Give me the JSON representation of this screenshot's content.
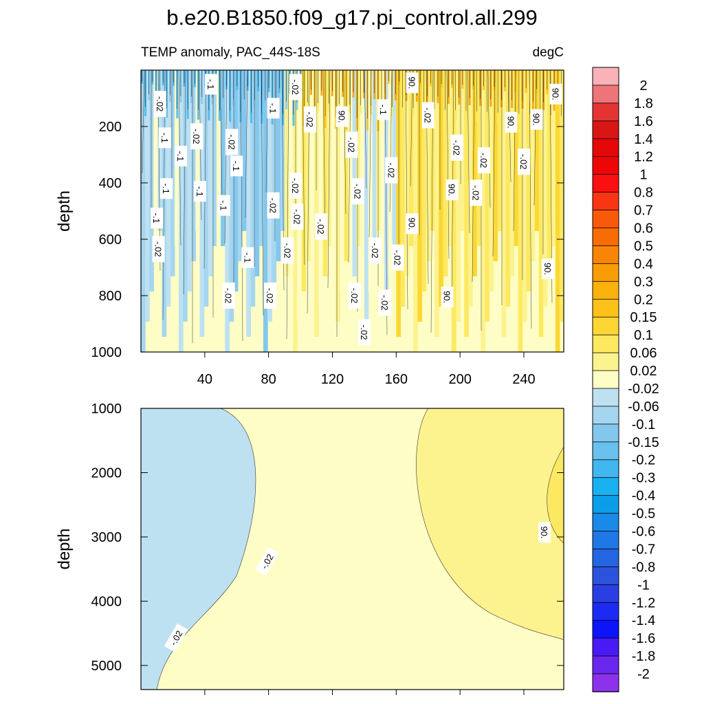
{
  "chart_data": {
    "type": "contour",
    "title": "b.e20.B1850.f09_g17.pi_control.all.299",
    "subtitle_left": "TEMP anomaly, PAC_44S-18S",
    "subtitle_right": "degC",
    "panels": [
      {
        "name": "upper",
        "ylabel": "depth",
        "ylim": [
          0,
          1000
        ],
        "xlim": [
          0,
          265
        ],
        "yticks": [
          200,
          400,
          600,
          800,
          1000
        ],
        "xticks": [
          40,
          80,
          120,
          160,
          200,
          240
        ],
        "regions": [
          {
            "x": [
              0,
              50
            ],
            "anomaly": -0.06
          },
          {
            "x": [
              50,
              90
            ],
            "anomaly": -0.1
          },
          {
            "x": [
              90,
              130
            ],
            "anomaly": 0.02
          },
          {
            "x": [
              130,
              160
            ],
            "anomaly": -0.02
          },
          {
            "x": [
              160,
              200
            ],
            "anomaly": 0.06
          },
          {
            "x": [
              200,
              265
            ],
            "anomaly": 0.06
          }
        ],
        "contour_labels": [
          {
            "x": 12,
            "y": 120,
            "text": "-.02"
          },
          {
            "x": 44,
            "y": 50,
            "text": "-.1"
          },
          {
            "x": 97,
            "y": 60,
            "text": "-.02"
          },
          {
            "x": 170,
            "y": 45,
            "text": "90."
          },
          {
            "x": 260,
            "y": 85,
            "text": "90."
          },
          {
            "x": 15,
            "y": 240,
            "text": "-.1"
          },
          {
            "x": 35,
            "y": 235,
            "text": "-.02"
          },
          {
            "x": 57,
            "y": 255,
            "text": "-.02"
          },
          {
            "x": 83,
            "y": 135,
            "text": "-.1"
          },
          {
            "x": 106,
            "y": 175,
            "text": "-.02"
          },
          {
            "x": 126,
            "y": 165,
            "text": "90."
          },
          {
            "x": 152,
            "y": 140,
            "text": "-.1"
          },
          {
            "x": 180,
            "y": 160,
            "text": "-.02"
          },
          {
            "x": 232,
            "y": 185,
            "text": "90."
          },
          {
            "x": 248,
            "y": 175,
            "text": "90."
          },
          {
            "x": 25,
            "y": 305,
            "text": "-.1"
          },
          {
            "x": 60,
            "y": 340,
            "text": "-.1"
          },
          {
            "x": 132,
            "y": 265,
            "text": "-.02"
          },
          {
            "x": 157,
            "y": 355,
            "text": "-.02"
          },
          {
            "x": 198,
            "y": 275,
            "text": "-.02"
          },
          {
            "x": 215,
            "y": 320,
            "text": "-.02"
          },
          {
            "x": 240,
            "y": 325,
            "text": "-.02"
          },
          {
            "x": 16,
            "y": 420,
            "text": "-.1"
          },
          {
            "x": 37,
            "y": 430,
            "text": "-.1"
          },
          {
            "x": 52,
            "y": 480,
            "text": "-.1"
          },
          {
            "x": 97,
            "y": 410,
            "text": "-.02"
          },
          {
            "x": 83,
            "y": 480,
            "text": "-.02"
          },
          {
            "x": 98,
            "y": 520,
            "text": "-.02"
          },
          {
            "x": 136,
            "y": 430,
            "text": "-.02"
          },
          {
            "x": 195,
            "y": 425,
            "text": "90."
          },
          {
            "x": 210,
            "y": 435,
            "text": "-.02"
          },
          {
            "x": 10,
            "y": 525,
            "text": "-.1"
          },
          {
            "x": 113,
            "y": 555,
            "text": "-.02"
          },
          {
            "x": 170,
            "y": 545,
            "text": "90."
          },
          {
            "x": 11,
            "y": 635,
            "text": "-.02"
          },
          {
            "x": 67,
            "y": 665,
            "text": "-.1"
          },
          {
            "x": 92,
            "y": 640,
            "text": "-.02"
          },
          {
            "x": 147,
            "y": 640,
            "text": "-.02"
          },
          {
            "x": 161,
            "y": 665,
            "text": "-.02"
          },
          {
            "x": 255,
            "y": 705,
            "text": "90."
          },
          {
            "x": 55,
            "y": 800,
            "text": "-.02"
          },
          {
            "x": 81,
            "y": 800,
            "text": "-.02"
          },
          {
            "x": 134,
            "y": 800,
            "text": "-.02"
          },
          {
            "x": 153,
            "y": 825,
            "text": "-.02"
          },
          {
            "x": 192,
            "y": 805,
            "text": "90."
          },
          {
            "x": 140,
            "y": 930,
            "text": "-.02"
          }
        ]
      },
      {
        "name": "lower",
        "ylabel": "depth",
        "ylim": [
          1000,
          5375
        ],
        "xlim": [
          0,
          265
        ],
        "yticks": [
          1000,
          2000,
          3000,
          4000,
          5000
        ],
        "regions": [
          {
            "x": [
              0,
              90
            ],
            "anomaly": -0.06
          },
          {
            "x": [
              90,
              175
            ],
            "anomaly": 0.02
          },
          {
            "x": [
              175,
              265
            ],
            "anomaly": 0.06
          }
        ],
        "contour_labels": [
          {
            "x": 79,
            "y": 3380,
            "text": "-.02"
          },
          {
            "x": 22,
            "y": 4570,
            "text": "-.02"
          },
          {
            "x": 253,
            "y": 2930,
            "text": "90."
          }
        ]
      }
    ],
    "colorbar": {
      "labels": [
        "2",
        "1.8",
        "1.6",
        "1.4",
        "1.2",
        "1",
        "0.8",
        "0.7",
        "0.6",
        "0.5",
        "0.4",
        "0.3",
        "0.2",
        "0.15",
        "0.1",
        "0.06",
        "0.02",
        "-0.02",
        "-0.06",
        "-0.1",
        "-0.15",
        "-0.2",
        "-0.3",
        "-0.4",
        "-0.5",
        "-0.6",
        "-0.7",
        "-0.8",
        "-1",
        "-1.2",
        "-1.4",
        "-1.6",
        "-1.8",
        "-2"
      ],
      "colors": [
        "#f9b3b8",
        "#ed7478",
        "#e33434",
        "#d91616",
        "#e40808",
        "#ee0606",
        "#f91010",
        "#f93614",
        "#f85a0a",
        "#f86c04",
        "#f88508",
        "#f99d06",
        "#fbb20c",
        "#fdc21a",
        "#fcd734",
        "#fde961",
        "#fdf38e",
        "#fefdc5",
        "#bee1f2",
        "#a5d6f0",
        "#84c7ee",
        "#6ac0ee",
        "#41b6ef",
        "#1ab1f0",
        "#0b9de8",
        "#1a8ae8",
        "#1f78e5",
        "#2466e0",
        "#2b53dc",
        "#2a3fe2",
        "#1c2bf2",
        "#0d14fa",
        "#4a1af4",
        "#6a28ee",
        "#8d32ea"
      ]
    }
  }
}
